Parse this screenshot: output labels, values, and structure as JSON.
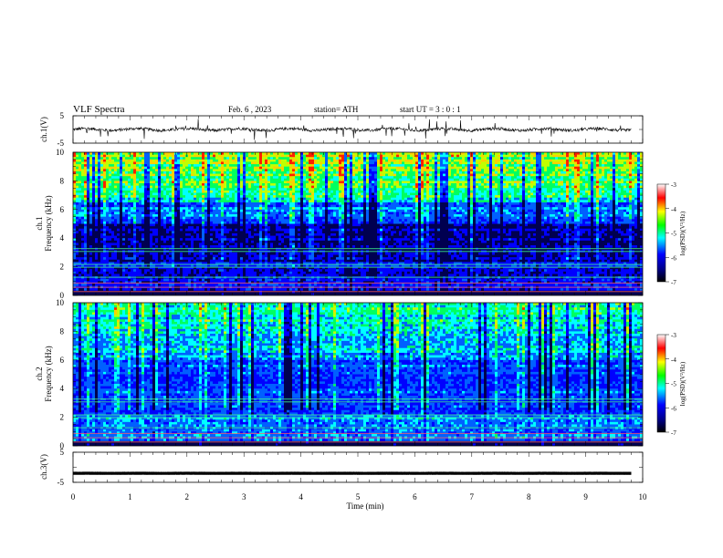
{
  "header": {
    "title": "VLF  Spectra",
    "date": "Feb. 6  , 2023",
    "station": "station= ATH",
    "start_ut": "start  UT  =    3  : 0   : 1"
  },
  "chart_data": [
    {
      "type": "line",
      "name": "ch1-waveform",
      "ylabel": "ch.1(V)",
      "ylim": [
        -5,
        5
      ],
      "yticks": [
        "5",
        "-5"
      ],
      "baseline": 0,
      "x_range_min": [
        0,
        9.8
      ]
    },
    {
      "type": "heatmap",
      "name": "ch1-spectrogram",
      "ylabel": "ch.1\nFrequency (kHz)",
      "ylim": [
        0,
        10
      ],
      "yticks": [
        "0",
        "2",
        "4",
        "6",
        "8",
        "10"
      ],
      "x_range_min": [
        0,
        9.8
      ]
    },
    {
      "type": "heatmap",
      "name": "ch2-spectrogram",
      "ylabel": "ch.2\nFrequency (kHz)",
      "ylim": [
        0,
        10
      ],
      "yticks": [
        "0",
        "2",
        "4",
        "6",
        "8",
        "10"
      ],
      "x_range_min": [
        0,
        9.8
      ]
    },
    {
      "type": "line",
      "name": "ch3-waveform",
      "ylabel": "ch.3(V)",
      "ylim": [
        -5,
        5
      ],
      "yticks": [
        "5",
        "-5"
      ],
      "baseline": -2,
      "x_range_min": [
        0,
        9.8
      ]
    }
  ],
  "x_axis": {
    "label": "Time  (min)",
    "ticks": [
      "0",
      "1",
      "2",
      "3",
      "4",
      "5",
      "6",
      "7",
      "8",
      "9",
      "10"
    ]
  },
  "colorbar": {
    "label": "log(PSD)(V²/Hz)",
    "ticks": [
      "-3",
      "-4",
      "-5",
      "-6",
      "-7"
    ],
    "colors": [
      "#ffffff",
      "#ff0000",
      "#ffff00",
      "#00ff00",
      "#00ffff",
      "#0000ff",
      "#000080",
      "#000000"
    ]
  }
}
